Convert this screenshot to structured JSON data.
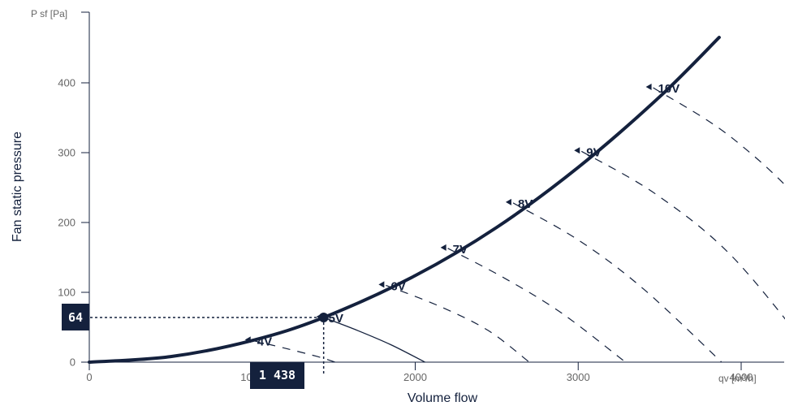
{
  "chart_data": {
    "type": "line",
    "x_unit": "qv [m³/h]",
    "y_unit": "P sf [Pa]",
    "xlabel": "Volume flow",
    "ylabel": "Fan static pressure",
    "xlim": [
      0,
      5000
    ],
    "ylim": [
      0,
      500
    ],
    "x_ticks": [
      0,
      1000,
      2000,
      3000,
      4000
    ],
    "y_ticks": [
      0,
      100,
      200,
      300,
      400
    ],
    "x_tick_labels": [
      "0",
      "1000",
      "2000",
      "3000",
      "4000"
    ],
    "y_tick_labels": [
      "0",
      "100",
      "200",
      "300",
      "400"
    ],
    "system_curve": {
      "name": "",
      "points": [
        [
          0,
          0
        ],
        [
          500,
          8
        ],
        [
          1000,
          31
        ],
        [
          1438,
          64
        ],
        [
          2000,
          124
        ],
        [
          2500,
          193
        ],
        [
          3000,
          279
        ],
        [
          3500,
          380
        ],
        [
          3865,
          465
        ]
      ]
    },
    "fan_curves": [
      {
        "name": "4V",
        "points": [
          [
            1000,
            31
          ],
          [
            1200,
            20
          ],
          [
            1400,
            8
          ],
          [
            1510,
            0
          ]
        ]
      },
      {
        "name": "5V",
        "points": [
          [
            1438,
            64
          ],
          [
            1650,
            45
          ],
          [
            1850,
            25
          ],
          [
            2060,
            0
          ]
        ]
      },
      {
        "name": "6V",
        "points": [
          [
            1820,
            110
          ],
          [
            2150,
            80
          ],
          [
            2450,
            45
          ],
          [
            2700,
            0
          ]
        ]
      },
      {
        "name": "7V",
        "points": [
          [
            2200,
            163
          ],
          [
            2550,
            120
          ],
          [
            2900,
            70
          ],
          [
            3290,
            0
          ]
        ]
      },
      {
        "name": "8V",
        "points": [
          [
            2600,
            228
          ],
          [
            3000,
            175
          ],
          [
            3400,
            105
          ],
          [
            3880,
            0
          ]
        ]
      },
      {
        "name": "9V",
        "points": [
          [
            3020,
            302
          ],
          [
            3480,
            240
          ],
          [
            3950,
            150
          ],
          [
            4480,
            0
          ]
        ]
      },
      {
        "name": "10V",
        "points": [
          [
            3460,
            393
          ],
          [
            3950,
            320
          ],
          [
            4460,
            205
          ],
          [
            5120,
            0
          ]
        ]
      }
    ],
    "operating_point": {
      "x": 1438,
      "y": 64,
      "x_label": "1 438",
      "y_label": "64"
    }
  }
}
